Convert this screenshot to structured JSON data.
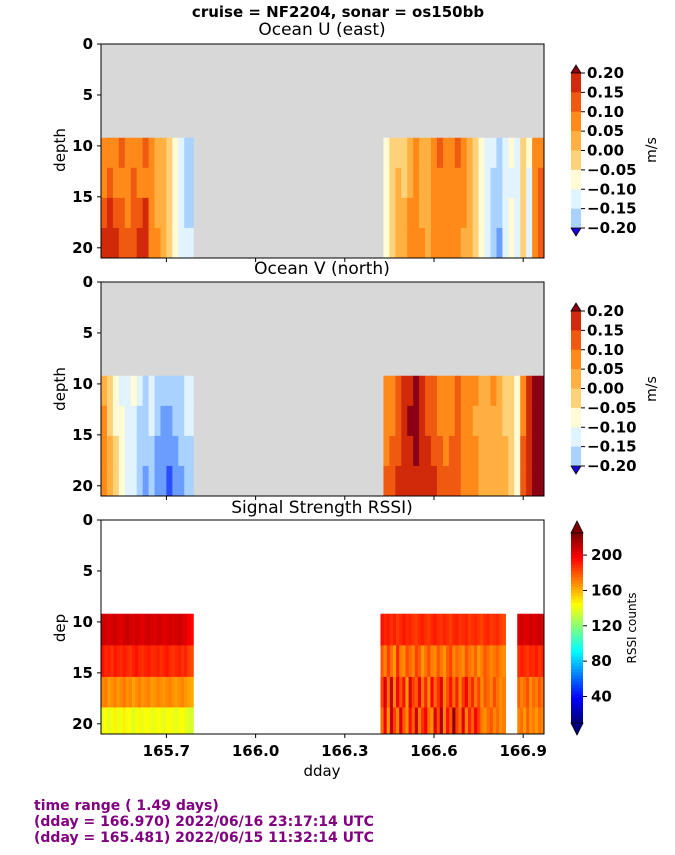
{
  "suptitle": "cruise = NF2204,  sonar = os150bb",
  "footer": {
    "line1": "time range ( 1.49 days)",
    "line2": "(dday = 166.970) 2022/06/16 23:17:14 UTC",
    "line3": "(dday = 165.481) 2022/06/15 11:32:14 UTC"
  },
  "colors": {
    "nodata": "#d8d8d8",
    "diverging": [
      "#1a00e0",
      "#2b4dff",
      "#6b9cff",
      "#a9d2ff",
      "#e0f3ff",
      "#fffbd4",
      "#ffd27a",
      "#ffb040",
      "#ff8a1a",
      "#f05a10",
      "#d12a0a",
      "#8a0015"
    ]
  },
  "chart_data": [
    {
      "type": "heatmap",
      "title": "Ocean U (east)",
      "xlabel": "",
      "ylabel": "depth",
      "units": "m/s",
      "xlim": [
        165.48,
        166.97
      ],
      "ylim": [
        21,
        0
      ],
      "yticks": [
        0,
        5,
        10,
        15,
        20
      ],
      "xticks": [
        165.7,
        166.0,
        166.3,
        166.6,
        166.9
      ],
      "xtick_labels_shown": false,
      "colorbar": {
        "ticks": [
          "0.20",
          "0.15",
          "0.10",
          "0.05",
          "0.00",
          "−0.05",
          "−0.10",
          "−0.15",
          "−0.20"
        ],
        "range": [
          -0.2,
          0.2
        ]
      },
      "data_start_depth": 9.2,
      "segments": [
        {
          "x": [
            165.481,
            165.5,
            165.52,
            165.54,
            165.56,
            165.58,
            165.6,
            165.62,
            165.64,
            165.66,
            165.68,
            165.7,
            165.72,
            165.74,
            165.76,
            165.79
          ],
          "values": [
            [
              0.1,
              0.12,
              0.08,
              0.14,
              0.1,
              0.12,
              0.11,
              0.13,
              0.09,
              0.06,
              0.05,
              0.02,
              -0.02,
              -0.06,
              -0.09,
              -0.08
            ],
            [
              0.12,
              0.15,
              0.1,
              0.12,
              0.09,
              0.13,
              0.12,
              0.11,
              0.08,
              0.07,
              0.04,
              0.01,
              -0.03,
              -0.06,
              -0.1,
              -0.07
            ],
            [
              0.14,
              0.16,
              0.13,
              0.13,
              0.11,
              0.14,
              0.15,
              0.16,
              0.1,
              0.07,
              0.06,
              0.02,
              -0.02,
              -0.05,
              -0.09,
              -0.08
            ],
            [
              0.16,
              0.18,
              0.17,
              0.15,
              0.13,
              0.15,
              0.17,
              0.17,
              0.12,
              0.09,
              0.06,
              0.03,
              -0.01,
              -0.04,
              -0.08,
              -0.09
            ]
          ]
        },
        {
          "x": [
            166.43,
            166.45,
            166.47,
            166.49,
            166.51,
            166.53,
            166.55,
            166.57,
            166.59,
            166.61,
            166.63,
            166.65,
            166.67,
            166.69,
            166.71,
            166.73,
            166.75,
            166.77,
            166.79,
            166.81,
            166.83,
            166.85,
            166.87,
            166.89,
            166.91,
            166.93,
            166.95,
            166.97
          ],
          "values": [
            [
              -0.03,
              0.0,
              0.03,
              0.02,
              0.06,
              0.08,
              0.05,
              0.07,
              0.12,
              0.13,
              0.12,
              0.11,
              0.13,
              0.09,
              0.06,
              0.03,
              -0.02,
              -0.04,
              -0.08,
              -0.12,
              -0.06,
              -0.03,
              -0.07,
              0.0,
              -0.03,
              0.08,
              0.12,
              0.16
            ],
            [
              -0.02,
              0.01,
              0.04,
              0.03,
              0.07,
              0.09,
              0.06,
              0.07,
              0.11,
              0.12,
              0.12,
              0.12,
              0.12,
              0.08,
              0.07,
              0.02,
              -0.03,
              -0.05,
              -0.09,
              -0.11,
              -0.06,
              -0.04,
              -0.06,
              0.01,
              -0.04,
              0.09,
              0.13,
              0.17
            ],
            [
              -0.02,
              0.02,
              0.04,
              0.05,
              0.08,
              0.1,
              0.07,
              0.06,
              0.1,
              0.11,
              0.12,
              0.11,
              0.11,
              0.08,
              0.06,
              0.03,
              -0.02,
              -0.06,
              -0.1,
              -0.12,
              -0.07,
              -0.03,
              -0.05,
              0.02,
              -0.05,
              0.1,
              0.14,
              0.18
            ],
            [
              -0.01,
              0.02,
              0.05,
              0.06,
              0.08,
              0.11,
              0.08,
              0.06,
              0.09,
              0.11,
              0.11,
              0.11,
              0.1,
              0.07,
              0.06,
              0.02,
              -0.02,
              -0.05,
              -0.11,
              -0.13,
              -0.08,
              -0.02,
              -0.04,
              0.03,
              -0.06,
              0.11,
              0.15,
              0.19
            ]
          ]
        }
      ]
    },
    {
      "type": "heatmap",
      "title": "Ocean V (north)",
      "xlabel": "",
      "ylabel": "depth",
      "units": "m/s",
      "xlim": [
        165.48,
        166.97
      ],
      "ylim": [
        21,
        0
      ],
      "yticks": [
        0,
        5,
        10,
        15,
        20
      ],
      "xticks": [
        165.7,
        166.0,
        166.3,
        166.6,
        166.9
      ],
      "xtick_labels_shown": false,
      "colorbar": {
        "ticks": [
          "0.20",
          "0.15",
          "0.10",
          "0.05",
          "0.00",
          "−0.05",
          "−0.10",
          "−0.15",
          "−0.20"
        ],
        "range": [
          -0.2,
          0.2
        ]
      },
      "data_start_depth": 9.2,
      "segments": [
        {
          "x": [
            165.481,
            165.5,
            165.52,
            165.54,
            165.56,
            165.58,
            165.6,
            165.62,
            165.64,
            165.66,
            165.68,
            165.7,
            165.72,
            165.74,
            165.76,
            165.79
          ],
          "values": [
            [
              0.06,
              0.02,
              -0.02,
              -0.04,
              -0.06,
              -0.03,
              -0.08,
              -0.1,
              -0.07,
              -0.11,
              -0.12,
              -0.12,
              -0.11,
              -0.1,
              -0.07,
              -0.07
            ],
            [
              0.08,
              0.03,
              -0.01,
              -0.03,
              -0.05,
              -0.04,
              -0.09,
              -0.11,
              -0.08,
              -0.12,
              -0.13,
              -0.13,
              -0.12,
              -0.11,
              -0.08,
              -0.07
            ],
            [
              0.09,
              0.04,
              0.0,
              -0.02,
              -0.06,
              -0.05,
              -0.1,
              -0.12,
              -0.1,
              -0.13,
              -0.14,
              -0.14,
              -0.13,
              -0.12,
              -0.09,
              -0.07
            ],
            [
              0.1,
              0.05,
              0.01,
              -0.02,
              -0.07,
              -0.06,
              -0.11,
              -0.13,
              -0.12,
              -0.14,
              -0.16,
              -0.18,
              -0.16,
              -0.13,
              -0.1,
              -0.07
            ]
          ]
        },
        {
          "x": [
            166.43,
            166.45,
            166.47,
            166.49,
            166.51,
            166.53,
            166.55,
            166.57,
            166.59,
            166.61,
            166.63,
            166.65,
            166.67,
            166.69,
            166.71,
            166.73,
            166.75,
            166.77,
            166.79,
            166.81,
            166.83,
            166.85,
            166.87,
            166.89,
            166.91,
            166.93,
            166.95,
            166.97
          ],
          "values": [
            [
              0.1,
              0.12,
              0.14,
              0.16,
              0.19,
              0.21,
              0.18,
              0.15,
              0.13,
              0.12,
              0.1,
              0.12,
              0.14,
              0.11,
              0.1,
              0.08,
              0.05,
              0.06,
              0.08,
              0.06,
              0.03,
              0.02,
              -0.01,
              0.12,
              0.16,
              0.21,
              0.2,
              0.19
            ],
            [
              0.11,
              0.12,
              0.15,
              0.17,
              0.2,
              0.21,
              0.18,
              0.15,
              0.13,
              0.12,
              0.11,
              0.12,
              0.13,
              0.11,
              0.1,
              0.07,
              0.05,
              0.06,
              0.07,
              0.05,
              0.03,
              0.02,
              -0.01,
              0.12,
              0.17,
              0.21,
              0.2,
              0.19
            ],
            [
              0.12,
              0.13,
              0.15,
              0.17,
              0.19,
              0.2,
              0.19,
              0.16,
              0.14,
              0.13,
              0.12,
              0.13,
              0.13,
              0.12,
              0.1,
              0.08,
              0.06,
              0.06,
              0.07,
              0.05,
              0.04,
              0.02,
              -0.01,
              0.13,
              0.17,
              0.2,
              0.2,
              0.19
            ],
            [
              0.13,
              0.14,
              0.16,
              0.17,
              0.18,
              0.19,
              0.19,
              0.17,
              0.16,
              0.15,
              0.14,
              0.14,
              0.13,
              0.12,
              0.11,
              0.09,
              0.07,
              0.07,
              0.07,
              0.05,
              0.04,
              0.02,
              -0.01,
              0.13,
              0.17,
              0.2,
              0.2,
              0.19
            ]
          ]
        }
      ]
    },
    {
      "type": "heatmap",
      "title": "Signal Strength RSSI)",
      "xlabel": "dday",
      "ylabel": "dep",
      "units": "RSSI counts",
      "xlim": [
        165.48,
        166.97
      ],
      "ylim": [
        21,
        0
      ],
      "yticks": [
        0,
        5,
        10,
        15,
        20
      ],
      "xticks": [
        165.7,
        166.0,
        166.3,
        166.6,
        166.9
      ],
      "xtick_labels": [
        "165.7",
        "166.0",
        "166.3",
        "166.6",
        "166.9"
      ],
      "colorbar": {
        "ticks": [
          "200",
          "160",
          "120",
          "80",
          "40"
        ],
        "range": [
          10,
          225
        ]
      },
      "depth_bins": [
        9.2,
        12.3,
        15.4,
        18.4,
        21.1
      ],
      "segments": [
        {
          "x_start": 165.481,
          "x_end": 165.79,
          "columns": 30,
          "rows": [
            [
              210,
              208,
              205,
              207,
              209,
              206,
              204,
              208,
              210,
              207,
              205,
              208,
              206,
              204,
              207,
              209,
              206,
              205,
              208,
              207,
              204,
              206,
              208,
              205,
              207,
              209,
              206,
              204,
              200,
              198
            ],
            [
              195,
              190,
              192,
              188,
              194,
              191,
              189,
              193,
              190,
              187,
              192,
              195,
              190,
              188,
              191,
              193,
              189,
              190,
              192,
              188,
              191,
              194,
              189,
              187,
              190,
              192,
              188,
              191,
              185,
              183
            ],
            [
              170,
              172,
              165,
              168,
              171,
              166,
              169,
              173,
              167,
              170,
              164,
              168,
              172,
              166,
              169,
              171,
              165,
              167,
              170,
              168,
              166,
              169,
              171,
              167,
              165,
              168,
              170,
              166,
              164,
              162
            ],
            [
              140,
              145,
              138,
              142,
              147,
              139,
              143,
              148,
              141,
              144,
              137,
              142,
              146,
              140,
              143,
              145,
              139,
              141,
              144,
              142,
              138,
              143,
              145,
              140,
              139,
              142,
              144,
              140,
              137,
              135
            ]
          ]
        },
        {
          "x_start": 166.42,
          "x_end": 166.84,
          "columns": 40,
          "rows": [
            [
              195,
              190,
              193,
              188,
              192,
              186,
              190,
              194,
              189,
              191,
              187,
              185,
              190,
              192,
              188,
              186,
              190,
              193,
              189,
              187,
              191,
              188,
              185,
              190,
              192,
              187,
              189,
              191,
              186,
              188,
              190,
              187,
              184,
              189,
              191,
              186,
              188,
              190,
              185,
              183
            ],
            [
              180,
              170,
              185,
              175,
              165,
              190,
              172,
              168,
              182,
              176,
              170,
              185,
              178,
              166,
              174,
              182,
              171,
              169,
              180,
              173,
              167,
              178,
              184,
              170,
              176,
              172,
              168,
              181,
              174,
              170,
              178,
              165,
              172,
              180,
              175,
              169,
              173,
              177,
              171,
              168
            ],
            [
              185,
              205,
              175,
              210,
              170,
              200,
              180,
              195,
              165,
              205,
              185,
              178,
              200,
              172,
              190,
              168,
              198,
              176,
              188,
              203,
              170,
              182,
              195,
              175,
              192,
              170,
              186,
              200,
              178,
              190,
              172,
              185,
              168,
              180,
              176,
              170,
              182,
              174,
              168,
              172
            ],
            [
              175,
              200,
              165,
              210,
              185,
              170,
              205,
              180,
              168,
              195,
              178,
              210,
              172,
              188,
              200,
              175,
              168,
              205,
              182,
              215,
              170,
              195,
              180,
              222,
              185,
              175,
              205,
              170,
              190,
              178,
              200,
              185,
              172,
              168,
              175,
              180,
              170,
              176,
              168,
              172
            ]
          ]
        },
        {
          "x_start": 166.88,
          "x_end": 166.97,
          "columns": 9,
          "rows": [
            [
              205,
              208,
              204,
              206,
              209,
              205,
              207,
              210,
              206
            ],
            [
              188,
              192,
              190,
              186,
              191,
              189,
              193,
              187,
              190
            ],
            [
              178,
              170,
              175,
              182,
              168,
              176,
              172,
              180,
              174
            ],
            [
              170,
              175,
              165,
              178,
              168,
              172,
              166,
              174,
              170
            ]
          ]
        }
      ]
    }
  ]
}
